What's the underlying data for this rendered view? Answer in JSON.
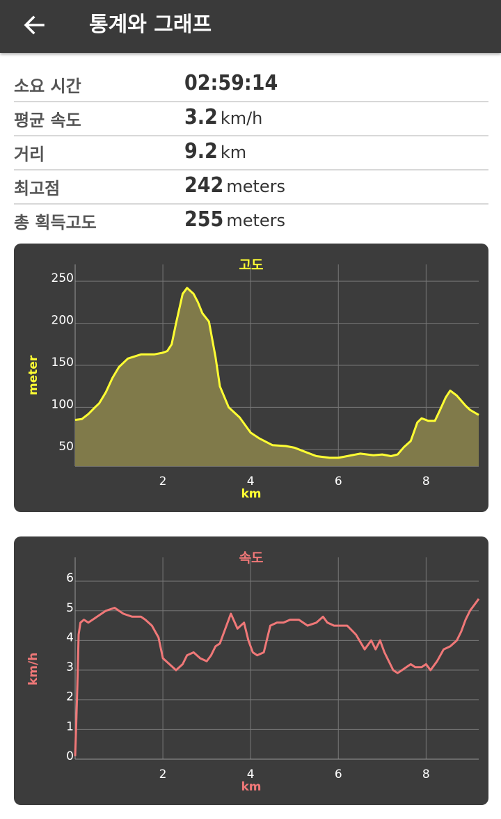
{
  "header": {
    "title": "통계와 그래프",
    "back_icon": "arrow-left-icon"
  },
  "stats": [
    {
      "label": "소요 시간",
      "value": "02:59:14",
      "unit": ""
    },
    {
      "label": "평균 속도",
      "value": "3.2",
      "unit": "km/h"
    },
    {
      "label": "거리",
      "value": "9.2",
      "unit": "km"
    },
    {
      "label": "최고점",
      "value": "242",
      "unit": "meters"
    },
    {
      "label": "총 획득고도",
      "value": "255",
      "unit": "meters"
    }
  ],
  "chart_data": [
    {
      "type": "area",
      "title": "고도",
      "xlabel": "km",
      "ylabel": "meter",
      "color": "#ffff33",
      "fill": "#807a4a",
      "xlim": [
        0.0,
        9.2
      ],
      "ylim": [
        30,
        270
      ],
      "xticks": [
        2,
        4,
        6,
        8
      ],
      "yticks": [
        50,
        100,
        150,
        200,
        250
      ],
      "x": [
        0.0,
        0.15,
        0.3,
        0.45,
        0.55,
        0.7,
        0.85,
        1.0,
        1.2,
        1.5,
        1.8,
        2.0,
        2.1,
        2.2,
        2.3,
        2.45,
        2.55,
        2.7,
        2.8,
        2.9,
        3.05,
        3.2,
        3.3,
        3.5,
        3.75,
        4.0,
        4.2,
        4.5,
        4.8,
        5.0,
        5.2,
        5.5,
        5.8,
        6.0,
        6.2,
        6.5,
        6.8,
        7.0,
        7.2,
        7.35,
        7.5,
        7.65,
        7.8,
        7.9,
        8.05,
        8.2,
        8.3,
        8.45,
        8.55,
        8.7,
        8.9,
        9.0,
        9.2
      ],
      "y": [
        85,
        86,
        92,
        100,
        105,
        118,
        135,
        148,
        158,
        163,
        163,
        165,
        167,
        175,
        200,
        235,
        242,
        235,
        225,
        212,
        202,
        160,
        125,
        100,
        88,
        70,
        63,
        55,
        54,
        52,
        48,
        42,
        40,
        40,
        42,
        45,
        43,
        44,
        42,
        44,
        53,
        60,
        82,
        87,
        84,
        84,
        95,
        112,
        120,
        114,
        102,
        97,
        91
      ]
    },
    {
      "type": "line",
      "title": "속도",
      "xlabel": "km",
      "ylabel": "km/h",
      "color": "#f07878",
      "xlim": [
        0.0,
        9.2
      ],
      "ylim": [
        0,
        6.8
      ],
      "xticks": [
        2,
        4,
        6,
        8
      ],
      "yticks": [
        0,
        1,
        2,
        3,
        4,
        5,
        6
      ],
      "x": [
        0.0,
        0.02,
        0.05,
        0.08,
        0.12,
        0.2,
        0.3,
        0.5,
        0.7,
        0.9,
        1.1,
        1.3,
        1.5,
        1.6,
        1.75,
        1.9,
        2.0,
        2.15,
        2.3,
        2.45,
        2.55,
        2.7,
        2.85,
        3.0,
        3.1,
        3.2,
        3.3,
        3.4,
        3.55,
        3.7,
        3.85,
        3.95,
        4.05,
        4.15,
        4.3,
        4.45,
        4.6,
        4.75,
        4.9,
        5.1,
        5.3,
        5.5,
        5.65,
        5.75,
        5.9,
        6.05,
        6.2,
        6.4,
        6.6,
        6.75,
        6.85,
        6.95,
        7.05,
        7.15,
        7.25,
        7.35,
        7.45,
        7.55,
        7.65,
        7.75,
        7.9,
        8.0,
        8.1,
        8.25,
        8.4,
        8.55,
        8.7,
        8.8,
        8.9,
        9.0,
        9.1,
        9.2
      ],
      "y": [
        0.1,
        1.0,
        2.5,
        4.2,
        4.6,
        4.7,
        4.6,
        4.8,
        5.0,
        5.1,
        4.9,
        4.8,
        4.8,
        4.7,
        4.5,
        4.1,
        3.4,
        3.2,
        3.0,
        3.2,
        3.5,
        3.6,
        3.4,
        3.3,
        3.5,
        3.8,
        3.9,
        4.3,
        4.9,
        4.4,
        4.6,
        4.0,
        3.6,
        3.5,
        3.6,
        4.5,
        4.6,
        4.6,
        4.7,
        4.7,
        4.5,
        4.6,
        4.8,
        4.6,
        4.5,
        4.5,
        4.5,
        4.2,
        3.7,
        4.0,
        3.7,
        4.0,
        3.6,
        3.3,
        3.0,
        2.9,
        3.0,
        3.1,
        3.2,
        3.1,
        3.1,
        3.2,
        3.0,
        3.3,
        3.7,
        3.8,
        4.0,
        4.3,
        4.7,
        5.0,
        5.2,
        5.4
      ]
    }
  ]
}
